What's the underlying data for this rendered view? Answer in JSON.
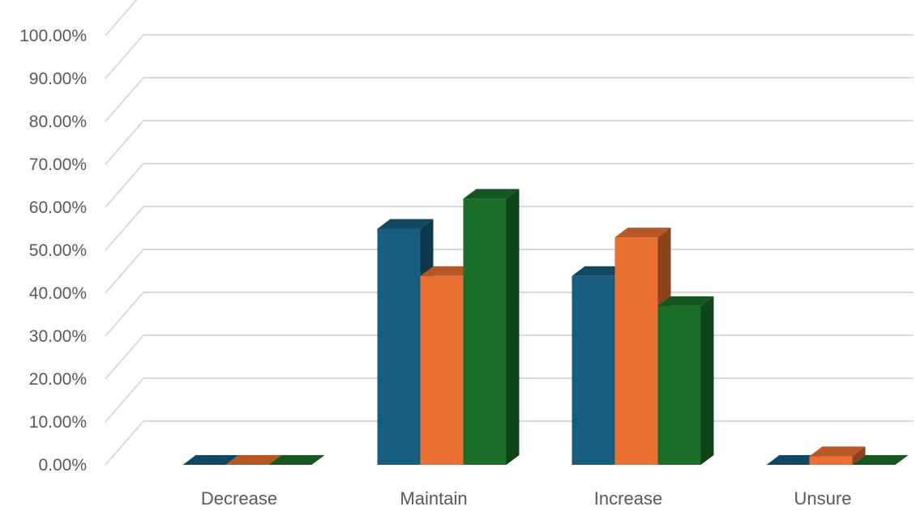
{
  "chart_data": {
    "type": "bar",
    "style": "3d-clustered-column",
    "categories": [
      "Decrease",
      "Maintain",
      "Increase",
      "Unsure"
    ],
    "series": [
      {
        "color": "#165e7f",
        "values": [
          0,
          55,
          44,
          0
        ]
      },
      {
        "color": "#ea7031",
        "values": [
          0,
          44,
          53,
          2
        ]
      },
      {
        "color": "#1b6f28",
        "values": [
          0,
          62,
          37,
          0
        ]
      }
    ],
    "y_ticks": [
      "0.00%",
      "10.00%",
      "20.00%",
      "30.00%",
      "40.00%",
      "50.00%",
      "60.00%",
      "70.00%",
      "80.00%",
      "90.00%",
      "100.00%"
    ],
    "ylim": [
      0,
      100
    ],
    "y_unit": "percent",
    "grid": true,
    "legend": "none",
    "colors": {
      "gridline": "#d9d9d9",
      "label": "#595959"
    }
  }
}
